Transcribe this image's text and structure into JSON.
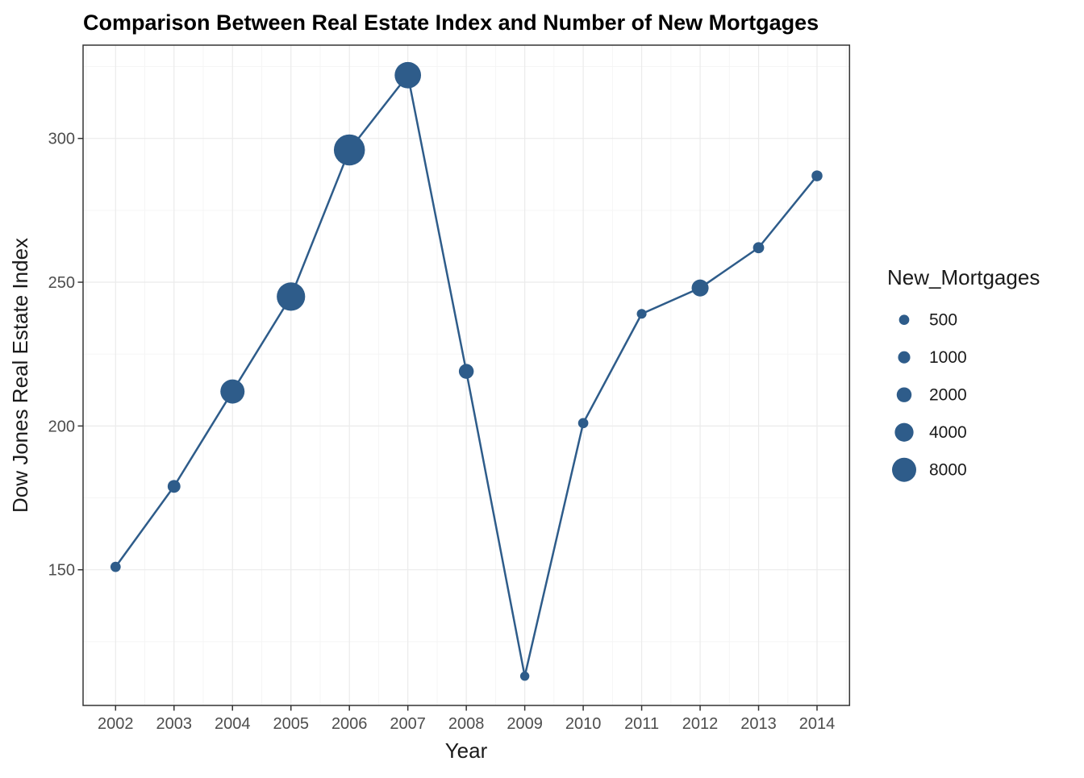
{
  "chart_data": {
    "type": "line",
    "subtype": "line with size-scaled scatter points (bubble line chart, ggplot theme_bw style)",
    "title": "Comparison Between Real Estate Index and Number of New Mortgages",
    "xlabel": "Year",
    "ylabel": "Dow Jones Real Estate Index",
    "x": [
      2002,
      2003,
      2004,
      2005,
      2006,
      2007,
      2008,
      2009,
      2010,
      2011,
      2012,
      2013,
      2014
    ],
    "y_ticks": [
      150,
      200,
      250,
      300
    ],
    "ylim": [
      103,
      332
    ],
    "grid": "major and minor gridlines, light gray on white panel, dark panel border",
    "series": [
      {
        "name": "Dow Jones Real Estate Index",
        "role": "y-value",
        "values": [
          151,
          179,
          212,
          245,
          296,
          322,
          219,
          113,
          201,
          239,
          248,
          262,
          287
        ]
      },
      {
        "name": "New_Mortgages",
        "role": "point-size-estimated-from-bubble-area",
        "values": [
          500,
          1200,
          8000,
          12000,
          15000,
          10000,
          2000,
          300,
          500,
          400,
          3000,
          700,
          650
        ]
      }
    ],
    "legend": {
      "title": "New_Mortgages",
      "position": "right",
      "entries": [
        {
          "label": "500",
          "value": 500
        },
        {
          "label": "1000",
          "value": 1000
        },
        {
          "label": "2000",
          "value": 2000
        },
        {
          "label": "4000",
          "value": 4000
        },
        {
          "label": "8000",
          "value": 8000
        }
      ]
    },
    "colors": {
      "point": "#2E5C8A",
      "line": "#2E5C8A",
      "grid_major": "#EBEBEB",
      "grid_minor": "#F5F5F5",
      "panel_border": "#333333",
      "tick_mark": "#333333",
      "tick_label": "#4D4D4D",
      "axis_title": "#1A1A1A",
      "plot_title": "#000000",
      "panel_bg": "#FFFFFF"
    }
  }
}
